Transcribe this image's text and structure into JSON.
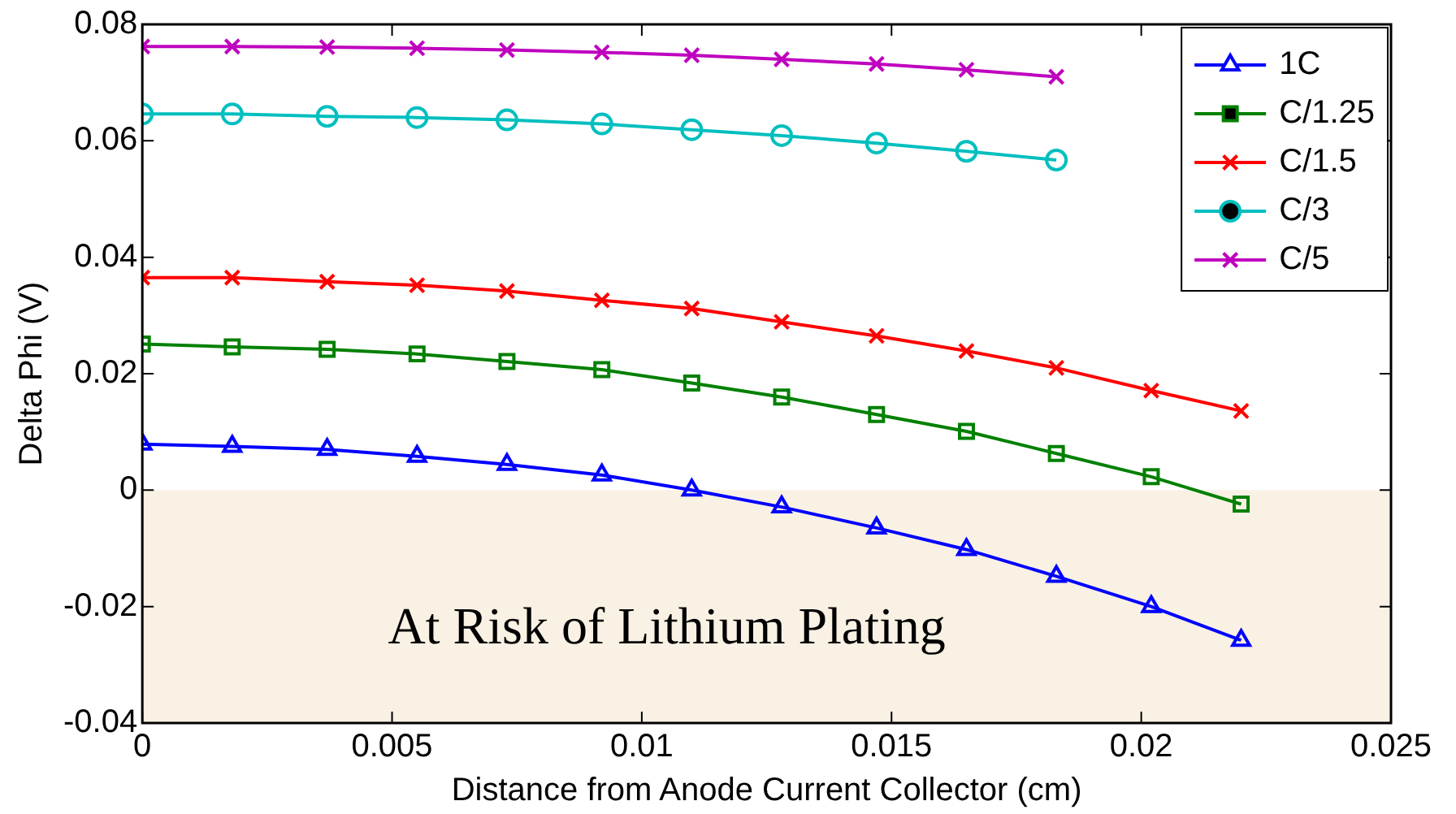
{
  "chart_data": {
    "type": "line",
    "xlabel": "Distance from Anode Current Collector (cm)",
    "ylabel": "Delta Phi (V)",
    "x": [
      0,
      0.0018,
      0.0037,
      0.0055,
      0.0073,
      0.0092,
      0.011,
      0.0128,
      0.0147,
      0.0165,
      0.0183,
      0.0202,
      0.022
    ],
    "series": [
      {
        "name": "1C",
        "color": "#0000ff",
        "marker": "triangle",
        "values": [
          0.0079,
          0.0075,
          0.007,
          0.0058,
          0.0044,
          0.0026,
          0,
          -0.0029,
          -0.0065,
          -0.0102,
          -0.0148,
          -0.02,
          -0.0258
        ]
      },
      {
        "name": "C/1.25",
        "color": "#008000",
        "marker": "square",
        "values": [
          0.0251,
          0.0246,
          0.0242,
          0.0234,
          0.0221,
          0.0207,
          0.0184,
          0.016,
          0.013,
          0.0101,
          0.0063,
          0.0023,
          -0.0024
        ]
      },
      {
        "name": "C/1.5",
        "color": "#ff0000",
        "marker": "cross",
        "values": [
          0.0365,
          0.0365,
          0.0358,
          0.0352,
          0.0342,
          0.0326,
          0.0312,
          0.0289,
          0.0265,
          0.0239,
          0.021,
          0.0171,
          0.0136
        ]
      },
      {
        "name": "C/3",
        "color": "#00bfbf",
        "marker": "circle",
        "values": [
          0.0646,
          0.0646,
          0.0642,
          0.064,
          0.0636,
          0.0629,
          0.0619,
          0.0609,
          0.0596,
          0.0582,
          0.0567,
          null,
          null
        ]
      },
      {
        "name": "C/5",
        "color": "#bf00bf",
        "marker": "cross",
        "values": [
          0.0762,
          0.0762,
          0.0761,
          0.0759,
          0.0756,
          0.0752,
          0.0747,
          0.074,
          0.0732,
          0.0722,
          0.071,
          null,
          null
        ]
      }
    ],
    "xlim": [
      0,
      0.025
    ],
    "xticks": [
      0,
      0.005,
      0.01,
      0.015,
      0.02,
      0.025
    ],
    "ylim": [
      -0.04,
      0.08
    ],
    "yticks": [
      -0.04,
      -0.02,
      0,
      0.02,
      0.04,
      0.06,
      0.08
    ],
    "bands": [
      {
        "axis": "y",
        "from": -0.04,
        "to": 0,
        "label": "At Risk of Lithium Plating",
        "color": "#f8f1e4"
      }
    ],
    "grid": false,
    "legend": "top right",
    "line_style": "solid"
  }
}
